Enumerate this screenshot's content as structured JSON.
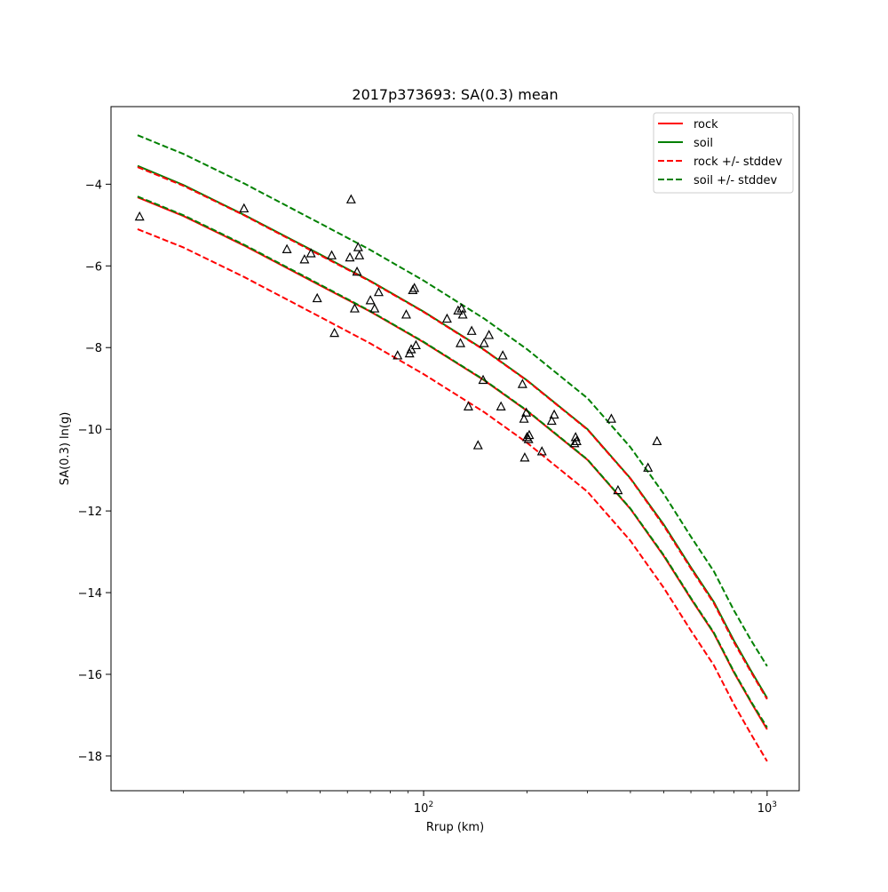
{
  "chart_data": {
    "type": "line",
    "title": "2017p373693: SA(0.3) mean",
    "xlabel": "Rrup (km)",
    "ylabel": "SA(0.3) ln(g)",
    "xscale": "log",
    "xlim": [
      12.3,
      1240
    ],
    "ylim": [
      -18.85,
      -2.1
    ],
    "grid": false,
    "legend_position": "top-right",
    "xticks": [
      {
        "value": 100,
        "base": "10",
        "exp": "2"
      },
      {
        "value": 1000,
        "base": "10",
        "exp": "3"
      }
    ],
    "x_minor_ticks": [
      20,
      30,
      40,
      50,
      60,
      70,
      80,
      90,
      200,
      300,
      400,
      500,
      600,
      700,
      800,
      900
    ],
    "yticks": [
      {
        "value": -4,
        "label": "−4"
      },
      {
        "value": -6,
        "label": "−6"
      },
      {
        "value": -8,
        "label": "−8"
      },
      {
        "value": -10,
        "label": "−10"
      },
      {
        "value": -12,
        "label": "−12"
      },
      {
        "value": -14,
        "label": "−14"
      },
      {
        "value": -16,
        "label": "−16"
      },
      {
        "value": -18,
        "label": "−18"
      }
    ],
    "series": [
      {
        "name": "rock",
        "color": "#ff0000",
        "style": "solid",
        "legend": true,
        "x": [
          14.7,
          20,
          30,
          50,
          70,
          100,
          150,
          200,
          300,
          400,
          500,
          600,
          700,
          800,
          900,
          1000
        ],
        "y": [
          -4.32,
          -4.78,
          -5.5,
          -6.48,
          -7.12,
          -7.87,
          -8.8,
          -9.55,
          -10.75,
          -11.95,
          -13.1,
          -14.15,
          -15.0,
          -15.95,
          -16.7,
          -17.35
        ]
      },
      {
        "name": "soil",
        "color": "#008000",
        "style": "solid",
        "legend": true,
        "x": [
          14.7,
          20,
          30,
          50,
          70,
          100,
          150,
          200,
          300,
          400,
          500,
          600,
          700,
          800,
          900,
          1000
        ],
        "y": [
          -3.55,
          -4.02,
          -4.75,
          -5.72,
          -6.37,
          -7.12,
          -8.05,
          -8.8,
          -10.0,
          -11.2,
          -12.33,
          -13.38,
          -14.23,
          -15.17,
          -15.93,
          -16.58
        ]
      },
      {
        "name": "rock +/- stddev",
        "color": "#ff0000",
        "style": "dashed",
        "legend": true,
        "x": [
          14.7,
          20,
          30,
          50,
          70,
          100,
          150,
          200,
          300,
          400,
          500,
          600,
          700,
          800,
          900,
          1000
        ],
        "y": [
          -3.58,
          -4.04,
          -4.76,
          -5.74,
          -6.38,
          -7.13,
          -8.06,
          -8.81,
          -10.01,
          -11.21,
          -12.36,
          -13.41,
          -14.26,
          -15.21,
          -15.96,
          -16.61
        ]
      },
      {
        "name": "rock +/- stddev",
        "color": "#ff0000",
        "style": "dashed",
        "legend": false,
        "x": [
          14.7,
          20,
          30,
          50,
          70,
          100,
          150,
          200,
          300,
          400,
          500,
          600,
          700,
          800,
          900,
          1000
        ],
        "y": [
          -5.1,
          -5.55,
          -6.27,
          -7.25,
          -7.9,
          -8.65,
          -9.58,
          -10.33,
          -11.53,
          -12.73,
          -13.88,
          -14.93,
          -15.78,
          -16.73,
          -17.48,
          -18.13
        ]
      },
      {
        "name": "soil +/- stddev",
        "color": "#008000",
        "style": "dashed",
        "legend": true,
        "x": [
          14.7,
          20,
          30,
          50,
          70,
          100,
          150,
          200,
          300,
          400,
          500,
          600,
          700,
          800,
          900,
          1000
        ],
        "y": [
          -2.8,
          -3.26,
          -3.98,
          -4.96,
          -5.61,
          -6.36,
          -7.29,
          -8.04,
          -9.24,
          -10.44,
          -11.58,
          -12.63,
          -13.48,
          -14.43,
          -15.18,
          -15.8
        ]
      },
      {
        "name": "soil +/- stddev",
        "color": "#008000",
        "style": "dashed",
        "legend": false,
        "x": [
          14.7,
          20,
          30,
          50,
          70,
          100,
          150,
          200,
          300,
          400,
          500,
          600,
          700,
          800,
          900,
          1000
        ],
        "y": [
          -4.3,
          -4.76,
          -5.48,
          -6.46,
          -7.11,
          -7.86,
          -8.79,
          -9.54,
          -10.74,
          -11.94,
          -13.08,
          -14.13,
          -14.98,
          -15.93,
          -16.68,
          -17.3
        ]
      }
    ],
    "observations": {
      "marker": "triangle",
      "color": "#000000",
      "points": [
        [
          14.9,
          -4.8
        ],
        [
          30,
          -4.6
        ],
        [
          40,
          -5.6
        ],
        [
          45,
          -5.85
        ],
        [
          47,
          -5.7
        ],
        [
          49,
          -6.8
        ],
        [
          54,
          -5.75
        ],
        [
          55,
          -7.65
        ],
        [
          61,
          -5.8
        ],
        [
          61.5,
          -4.38
        ],
        [
          63,
          -7.05
        ],
        [
          64,
          -6.15
        ],
        [
          64.5,
          -5.55
        ],
        [
          65,
          -5.75
        ],
        [
          70,
          -6.85
        ],
        [
          72,
          -7.05
        ],
        [
          74,
          -6.65
        ],
        [
          84,
          -8.2
        ],
        [
          89,
          -7.2
        ],
        [
          91,
          -8.15
        ],
        [
          92,
          -8.05
        ],
        [
          93,
          -6.6
        ],
        [
          94,
          -6.55
        ],
        [
          95,
          -7.95
        ],
        [
          117,
          -7.3
        ],
        [
          126,
          -7.1
        ],
        [
          128,
          -7.9
        ],
        [
          129,
          -7.05
        ],
        [
          130,
          -7.2
        ],
        [
          135,
          -9.45
        ],
        [
          138,
          -7.6
        ],
        [
          144,
          -10.4
        ],
        [
          149,
          -8.8
        ],
        [
          150,
          -7.9
        ],
        [
          155,
          -7.7
        ],
        [
          168,
          -9.45
        ],
        [
          170,
          -8.2
        ],
        [
          194,
          -8.9
        ],
        [
          196,
          -9.75
        ],
        [
          197,
          -10.7
        ],
        [
          199,
          -9.6
        ],
        [
          200,
          -10.2
        ],
        [
          202,
          -10.25
        ],
        [
          203,
          -10.15
        ],
        [
          221,
          -10.55
        ],
        [
          236,
          -9.8
        ],
        [
          240,
          -9.65
        ],
        [
          275,
          -10.35
        ],
        [
          277,
          -10.2
        ],
        [
          279,
          -10.3
        ],
        [
          352,
          -9.75
        ],
        [
          368,
          -11.5
        ],
        [
          450,
          -10.95
        ],
        [
          478,
          -10.3
        ]
      ]
    }
  }
}
